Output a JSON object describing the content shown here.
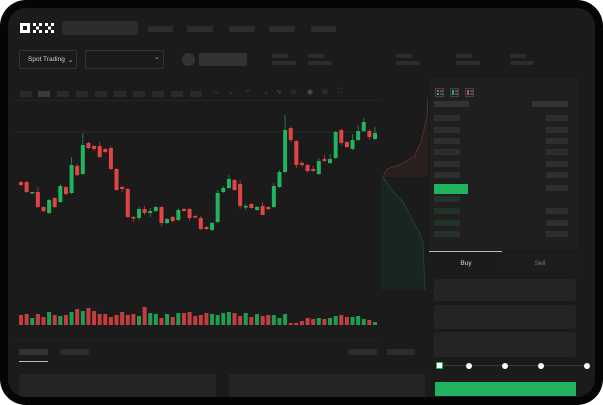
{
  "header": {
    "logo": "OKX"
  },
  "market": {
    "mode_label": "Spot Trading",
    "mode_chevron": "⌄",
    "pair_chevron": "⌄"
  },
  "orderbook": {
    "view_icons": [
      "orderbook-both-icon",
      "orderbook-bids-icon",
      "orderbook-asks-icon"
    ]
  },
  "trade": {
    "buy_tab": "Buy",
    "sell_tab": "Sell",
    "slider_stops": 5,
    "slider_value": 0
  },
  "colors": {
    "up": "#22b35e",
    "down": "#e04545",
    "bg": "#1b1b1b"
  },
  "chart_data": {
    "type": "candlestick",
    "candles": [
      [
        68,
        69,
        64,
        65
      ],
      [
        68,
        69,
        57,
        58
      ],
      [
        57,
        58,
        56,
        58
      ],
      [
        58,
        63,
        42,
        43
      ],
      [
        43,
        44,
        38,
        39
      ],
      [
        37,
        51,
        36,
        50
      ],
      [
        52,
        53,
        42,
        43
      ],
      [
        48,
        66,
        47,
        64
      ],
      [
        63,
        64,
        55,
        56
      ],
      [
        57,
        93,
        56,
        85
      ],
      [
        84,
        86,
        74,
        75
      ],
      [
        76,
        117,
        75,
        105
      ],
      [
        107,
        108,
        101,
        102
      ],
      [
        104,
        105,
        99,
        101
      ],
      [
        104,
        108,
        92,
        93
      ],
      [
        101,
        102,
        97,
        98
      ],
      [
        102,
        104,
        80,
        81
      ],
      [
        81,
        82,
        59,
        60
      ],
      [
        63,
        64,
        58,
        61
      ],
      [
        61,
        62,
        32,
        33
      ],
      [
        33,
        34,
        28,
        32
      ],
      [
        32,
        43,
        30,
        41
      ],
      [
        41,
        44,
        35,
        37
      ],
      [
        37,
        42,
        33,
        39
      ],
      [
        39,
        44,
        38,
        43
      ],
      [
        43,
        44,
        24,
        27
      ],
      [
        27,
        32,
        26,
        31
      ],
      [
        33,
        34,
        27,
        29
      ],
      [
        30,
        42,
        29,
        40
      ],
      [
        41,
        42,
        38,
        39
      ],
      [
        41,
        42,
        29,
        32
      ],
      [
        34,
        35,
        32,
        33
      ],
      [
        32,
        34,
        20,
        21
      ],
      [
        23,
        24,
        20,
        21
      ],
      [
        20,
        28,
        19,
        27
      ],
      [
        28,
        60,
        27,
        57
      ],
      [
        58,
        64,
        57,
        62
      ],
      [
        62,
        75,
        61,
        71
      ],
      [
        70,
        71,
        59,
        60
      ],
      [
        66,
        70,
        41,
        44
      ],
      [
        43,
        46,
        40,
        44
      ],
      [
        46,
        47,
        41,
        42
      ],
      [
        40,
        44,
        39,
        43
      ],
      [
        44,
        48,
        35,
        35
      ],
      [
        43,
        44,
        40,
        41
      ],
      [
        43,
        67,
        42,
        64
      ],
      [
        63,
        80,
        62,
        78
      ],
      [
        78,
        135,
        77,
        120
      ],
      [
        122,
        124,
        108,
        110
      ],
      [
        109,
        110,
        82,
        85
      ],
      [
        87,
        89,
        83,
        85
      ],
      [
        85,
        86,
        77,
        79
      ],
      [
        81,
        84,
        78,
        79
      ],
      [
        76,
        92,
        75,
        89
      ],
      [
        91,
        95,
        88,
        89
      ],
      [
        87,
        96,
        86,
        91
      ],
      [
        92,
        119,
        91,
        118
      ],
      [
        120,
        121,
        105,
        107
      ],
      [
        108,
        109,
        102,
        103
      ],
      [
        101,
        116,
        100,
        110
      ],
      [
        110,
        125,
        109,
        119
      ],
      [
        119,
        132,
        118,
        128
      ],
      [
        119,
        121,
        110,
        113
      ],
      [
        111,
        123,
        110,
        117
      ]
    ],
    "volume": [
      10,
      11,
      7,
      11,
      8,
      13,
      10,
      9,
      10,
      13,
      16,
      14,
      17,
      14,
      11,
      11,
      8,
      10,
      13,
      10,
      11,
      9,
      18,
      12,
      11,
      7,
      11,
      8,
      12,
      12,
      13,
      9,
      10,
      12,
      11,
      10,
      12,
      13,
      12,
      9,
      12,
      8,
      11,
      9,
      10,
      10,
      7,
      11,
      2,
      2,
      4,
      7,
      6,
      7,
      6,
      7,
      9,
      10,
      8,
      8,
      9,
      6,
      5,
      3
    ]
  }
}
